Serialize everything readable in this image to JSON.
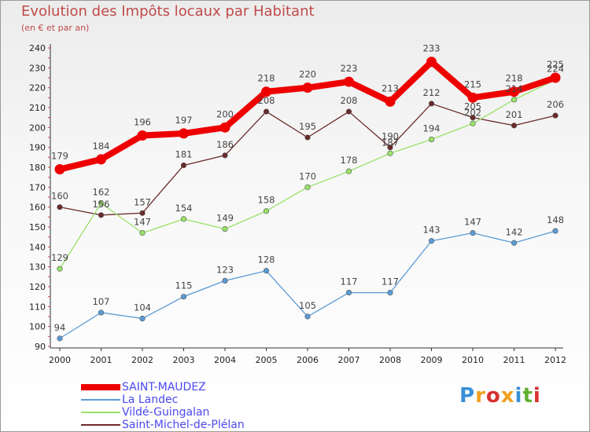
{
  "chart_data": {
    "type": "line",
    "title": "Evolution des Impôts locaux par Habitant",
    "subtitle": "(en € et par an)",
    "x": [
      "2000",
      "2001",
      "2002",
      "2003",
      "2004",
      "2005",
      "2006",
      "2007",
      "2008",
      "2009",
      "2010",
      "2011",
      "2012"
    ],
    "ylim": [
      90,
      240
    ],
    "yticks": [
      90,
      100,
      110,
      120,
      130,
      140,
      150,
      160,
      170,
      180,
      190,
      200,
      210,
      220,
      230,
      240
    ],
    "grid": false,
    "legend_position": "bottom-left",
    "series": [
      {
        "name": "SAINT-MAUDEZ",
        "color": "#ee0000",
        "values": [
          179,
          184,
          196,
          197,
          200,
          218,
          220,
          223,
          213,
          233,
          215,
          218,
          225
        ]
      },
      {
        "name": "La Landec",
        "color": "#5b9bd5",
        "values": [
          94,
          107,
          104,
          115,
          123,
          128,
          105,
          117,
          117,
          143,
          147,
          142,
          148
        ]
      },
      {
        "name": "Vildé-Guingalan",
        "color": "#99e26a",
        "values": [
          129,
          162,
          147,
          154,
          149,
          158,
          170,
          178,
          187,
          194,
          202,
          214,
          224
        ]
      },
      {
        "name": "Saint-Michel-de-Plélan",
        "color": "#6b2a2a",
        "values": [
          160,
          156,
          157,
          181,
          186,
          208,
          195,
          208,
          190,
          212,
          205,
          201,
          206
        ]
      }
    ]
  },
  "legend": {
    "items": [
      "SAINT-MAUDEZ",
      "La Landec",
      "Vildé-Guingalan",
      "Saint-Michel-de-Plélan"
    ]
  },
  "logo": {
    "letters": [
      "P",
      "r",
      "o",
      "x",
      "i",
      "t",
      "i"
    ],
    "colors": [
      "#3a8fd8",
      "#f0a020",
      "#d83030",
      "#f0a020",
      "#3a8fd8",
      "#60b030",
      "#d83030"
    ]
  }
}
